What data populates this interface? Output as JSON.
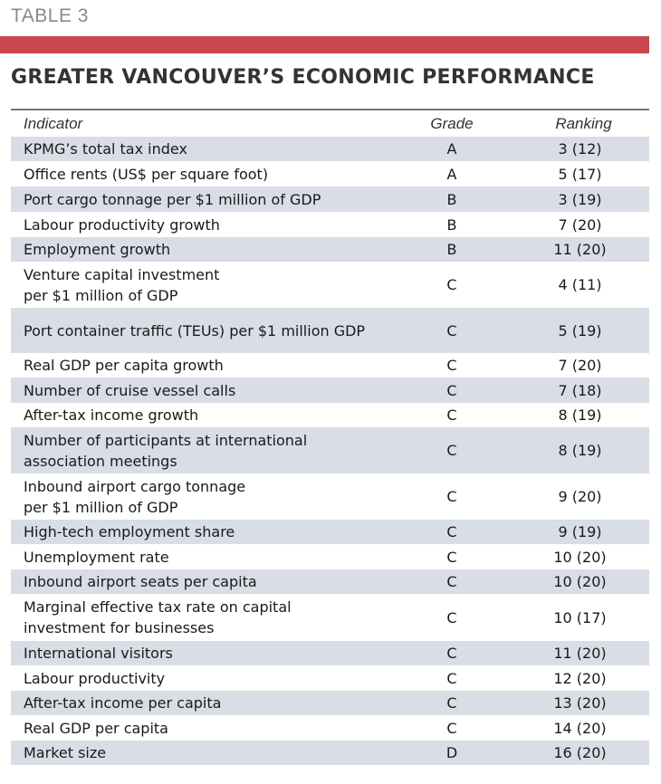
{
  "table_label": "TABLE 3",
  "accent_color": "#c9474f",
  "stripe_color": "#d8dde6",
  "title": "GREATER VANCOUVER’S ECONOMIC PERFORMANCE",
  "columns": {
    "indicator": "Indicator",
    "grade": "Grade",
    "ranking": "Ranking"
  },
  "rows": [
    {
      "indicator": [
        "KPMG’s total tax index"
      ],
      "grade": "A",
      "ranking": "3 (12)"
    },
    {
      "indicator": [
        "Office rents (US$ per square foot)"
      ],
      "grade": "A",
      "ranking": "5 (17)"
    },
    {
      "indicator": [
        "Port cargo tonnage per $1 million of GDP"
      ],
      "grade": "B",
      "ranking": "3 (19)"
    },
    {
      "indicator": [
        "Labour productivity growth"
      ],
      "grade": "B",
      "ranking": "7 (20)"
    },
    {
      "indicator": [
        "Employment growth"
      ],
      "grade": "B",
      "ranking": "11 (20)"
    },
    {
      "indicator": [
        "Venture capital investment",
        "per $1 million of GDP"
      ],
      "grade": "C",
      "ranking": "4 (11)"
    },
    {
      "indicator": [
        "Port container traffic (TEUs) per $1 million GDP"
      ],
      "grade": "C",
      "ranking": "5 (19)"
    },
    {
      "indicator": [
        "Real GDP per capita growth"
      ],
      "grade": "C",
      "ranking": "7 (20)"
    },
    {
      "indicator": [
        "Number of cruise vessel calls"
      ],
      "grade": "C",
      "ranking": "7 (18)"
    },
    {
      "indicator": [
        "After-tax income growth"
      ],
      "grade": "C",
      "ranking": "8 (19)"
    },
    {
      "indicator": [
        "Number of participants at international",
        "association meetings"
      ],
      "grade": "C",
      "ranking": "8 (19)"
    },
    {
      "indicator": [
        "Inbound airport cargo tonnage",
        "per $1 million of GDP"
      ],
      "grade": "C",
      "ranking": "9 (20)"
    },
    {
      "indicator": [
        "High-tech employment share"
      ],
      "grade": "C",
      "ranking": "9 (19)"
    },
    {
      "indicator": [
        "Unemployment rate"
      ],
      "grade": "C",
      "ranking": "10 (20)"
    },
    {
      "indicator": [
        "Inbound airport seats per capita"
      ],
      "grade": "C",
      "ranking": "10 (20)"
    },
    {
      "indicator": [
        "Marginal effective tax rate on capital",
        "investment for businesses"
      ],
      "grade": "C",
      "ranking": "10 (17)"
    },
    {
      "indicator": [
        "International visitors"
      ],
      "grade": "C",
      "ranking": "11 (20)"
    },
    {
      "indicator": [
        "Labour productivity"
      ],
      "grade": "C",
      "ranking": "12 (20)"
    },
    {
      "indicator": [
        "After-tax income per capita"
      ],
      "grade": "C",
      "ranking": "13 (20)"
    },
    {
      "indicator": [
        "Real GDP per capita"
      ],
      "grade": "C",
      "ranking": "14 (20)"
    },
    {
      "indicator": [
        "Market size"
      ],
      "grade": "D",
      "ranking": "16 (20)"
    }
  ]
}
